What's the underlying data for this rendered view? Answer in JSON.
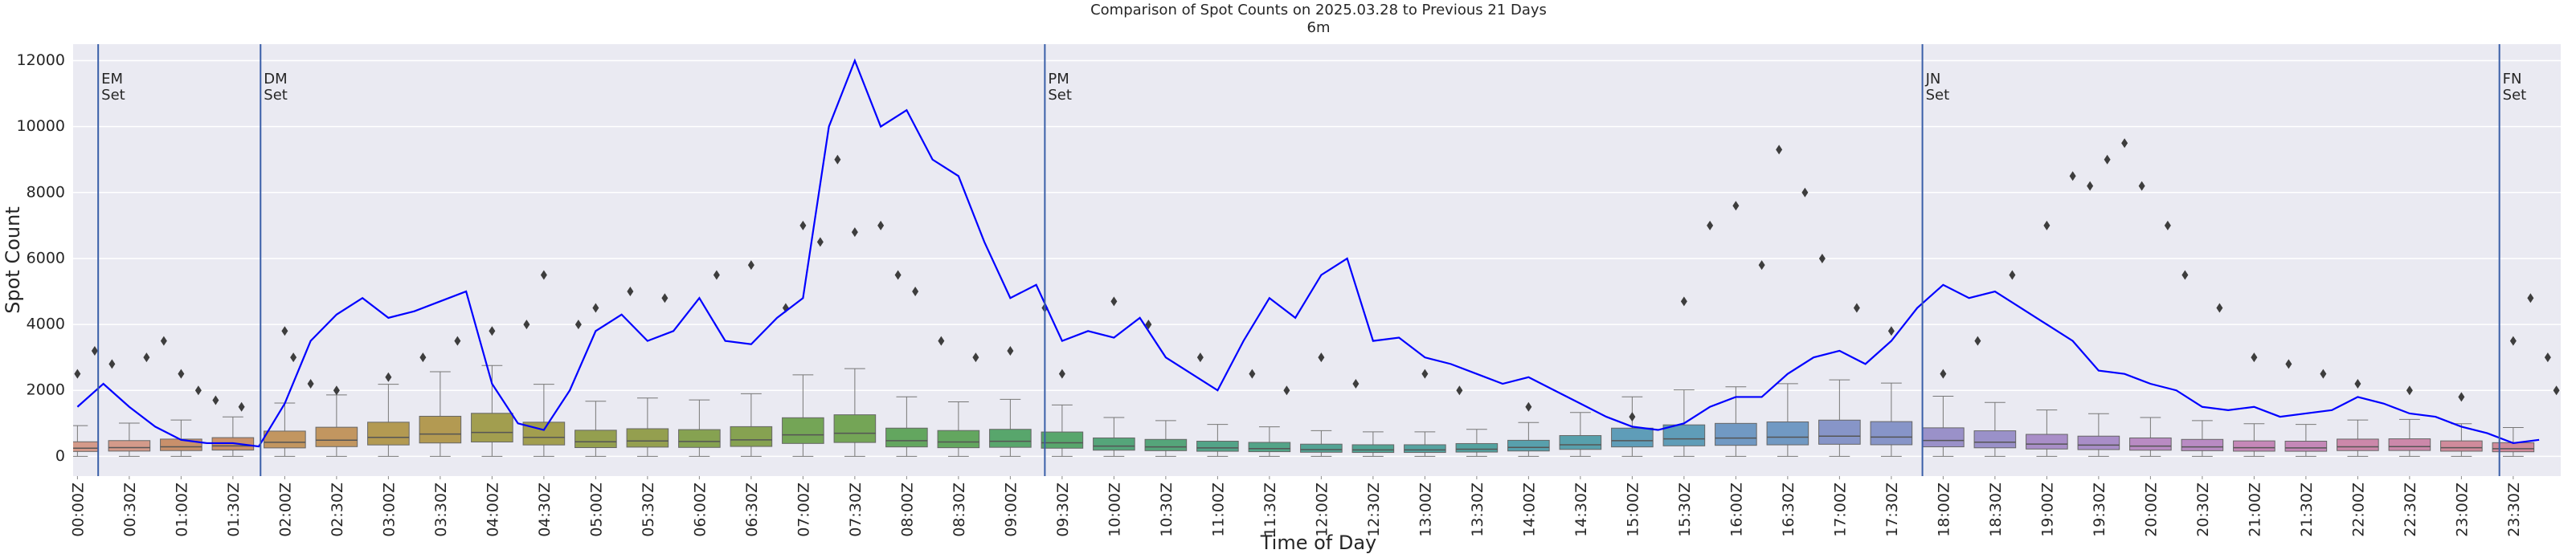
{
  "chart_data": {
    "type": "box",
    "title": "Comparison of Spot Counts on 2025.03.28 to Previous 21 Days",
    "subtitle": "6m",
    "xlabel": "Time of Day",
    "ylabel": "Spot Count",
    "grid": true,
    "background": "#eaeaf2",
    "xlim": [
      -2.5,
      1437.5
    ],
    "ylim": [
      -600,
      12500
    ],
    "yticks": [
      0,
      2000,
      4000,
      6000,
      8000,
      10000,
      12000
    ],
    "xticks": [
      {
        "value": 0,
        "label": "00:00Z"
      },
      {
        "value": 30,
        "label": "00:30Z"
      },
      {
        "value": 60,
        "label": "01:00Z"
      },
      {
        "value": 90,
        "label": "01:30Z"
      },
      {
        "value": 120,
        "label": "02:00Z"
      },
      {
        "value": 150,
        "label": "02:30Z"
      },
      {
        "value": 180,
        "label": "03:00Z"
      },
      {
        "value": 210,
        "label": "03:30Z"
      },
      {
        "value": 240,
        "label": "04:00Z"
      },
      {
        "value": 270,
        "label": "04:30Z"
      },
      {
        "value": 300,
        "label": "05:00Z"
      },
      {
        "value": 330,
        "label": "05:30Z"
      },
      {
        "value": 360,
        "label": "06:00Z"
      },
      {
        "value": 390,
        "label": "06:30Z"
      },
      {
        "value": 420,
        "label": "07:00Z"
      },
      {
        "value": 450,
        "label": "07:30Z"
      },
      {
        "value": 480,
        "label": "08:00Z"
      },
      {
        "value": 510,
        "label": "08:30Z"
      },
      {
        "value": 540,
        "label": "09:00Z"
      },
      {
        "value": 570,
        "label": "09:30Z"
      },
      {
        "value": 600,
        "label": "10:00Z"
      },
      {
        "value": 630,
        "label": "10:30Z"
      },
      {
        "value": 660,
        "label": "11:00Z"
      },
      {
        "value": 690,
        "label": "11:30Z"
      },
      {
        "value": 720,
        "label": "12:00Z"
      },
      {
        "value": 750,
        "label": "12:30Z"
      },
      {
        "value": 780,
        "label": "13:00Z"
      },
      {
        "value": 810,
        "label": "13:30Z"
      },
      {
        "value": 840,
        "label": "14:00Z"
      },
      {
        "value": 870,
        "label": "14:30Z"
      },
      {
        "value": 900,
        "label": "15:00Z"
      },
      {
        "value": 930,
        "label": "15:30Z"
      },
      {
        "value": 960,
        "label": "16:00Z"
      },
      {
        "value": 990,
        "label": "16:30Z"
      },
      {
        "value": 1020,
        "label": "17:00Z"
      },
      {
        "value": 1050,
        "label": "17:30Z"
      },
      {
        "value": 1080,
        "label": "18:00Z"
      },
      {
        "value": 1110,
        "label": "18:30Z"
      },
      {
        "value": 1140,
        "label": "19:00Z"
      },
      {
        "value": 1170,
        "label": "19:30Z"
      },
      {
        "value": 1200,
        "label": "20:00Z"
      },
      {
        "value": 1230,
        "label": "20:30Z"
      },
      {
        "value": 1260,
        "label": "21:00Z"
      },
      {
        "value": 1290,
        "label": "21:30Z"
      },
      {
        "value": 1320,
        "label": "22:00Z"
      },
      {
        "value": 1350,
        "label": "22:30Z"
      },
      {
        "value": 1380,
        "label": "23:00Z"
      },
      {
        "value": 1410,
        "label": "23:30Z"
      }
    ],
    "boxes": {
      "x": [
        0,
        30,
        60,
        90,
        120,
        150,
        180,
        210,
        240,
        270,
        300,
        330,
        360,
        390,
        420,
        450,
        480,
        510,
        540,
        570,
        600,
        630,
        660,
        690,
        720,
        750,
        780,
        810,
        840,
        870,
        900,
        930,
        960,
        990,
        1020,
        1050,
        1080,
        1110,
        1140,
        1170,
        1200,
        1230,
        1260,
        1290,
        1320,
        1350,
        1380,
        1410
      ],
      "whislo": [
        0,
        0,
        0,
        0,
        0,
        0,
        0,
        0,
        0,
        0,
        0,
        0,
        0,
        0,
        0,
        0,
        0,
        0,
        0,
        0,
        0,
        0,
        0,
        0,
        0,
        0,
        0,
        0,
        0,
        0,
        0,
        0,
        0,
        0,
        0,
        0,
        0,
        0,
        0,
        0,
        0,
        0,
        0,
        0,
        0,
        0,
        0,
        0
      ],
      "q1": [
        147,
        159,
        174,
        189,
        255,
        294,
        345,
        405,
        435,
        345,
        264,
        279,
        270,
        300,
        390,
        420,
        285,
        261,
        273,
        246,
        186,
        171,
        153,
        141,
        123,
        117,
        117,
        129,
        162,
        210,
        285,
        318,
        333,
        348,
        366,
        351,
        288,
        258,
        222,
        204,
        186,
        171,
        156,
        153,
        174,
        177,
        156,
        138
      ],
      "median": [
        245,
        265,
        290,
        315,
        425,
        490,
        575,
        675,
        725,
        575,
        440,
        465,
        450,
        500,
        650,
        700,
        475,
        435,
        455,
        410,
        310,
        285,
        255,
        235,
        205,
        195,
        195,
        215,
        270,
        350,
        475,
        530,
        555,
        580,
        610,
        585,
        480,
        430,
        370,
        340,
        310,
        285,
        260,
        255,
        290,
        295,
        260,
        230
      ],
      "q3": [
        441,
        477,
        522,
        567,
        765,
        882,
        1035,
        1215,
        1305,
        1035,
        792,
        837,
        810,
        900,
        1170,
        1260,
        855,
        783,
        819,
        738,
        558,
        513,
        459,
        423,
        369,
        351,
        351,
        387,
        486,
        630,
        855,
        954,
        999,
        1044,
        1098,
        1053,
        864,
        774,
        666,
        612,
        558,
        513,
        468,
        459,
        522,
        531,
        468,
        414
      ],
      "whishi": [
        931,
        1007,
        1102,
        1197,
        1615,
        1862,
        2185,
        2565,
        2755,
        2185,
        1672,
        1767,
        1710,
        1900,
        2470,
        2660,
        1805,
        1653,
        1729,
        1558,
        1178,
        1083,
        969,
        893,
        779,
        741,
        741,
        817,
        1026,
        1330,
        1805,
        2014,
        2109,
        2204,
        2318,
        2223,
        1824,
        1634,
        1406,
        1292,
        1178,
        1083,
        988,
        969,
        1102,
        1121,
        988,
        874
      ],
      "colors": [
        "#d49a8a",
        "#d49a8a",
        "#c9906b",
        "#c9906b",
        "#c29660",
        "#c29660",
        "#b39a52",
        "#b39a52",
        "#a29e4f",
        "#a29e4f",
        "#949f4f",
        "#949f4f",
        "#86a251",
        "#86a251",
        "#74a556",
        "#74a556",
        "#63a65f",
        "#63a65f",
        "#58a66c",
        "#58a66c",
        "#55a57a",
        "#55a57a",
        "#53a488",
        "#53a488",
        "#52a394",
        "#52a394",
        "#54a2a0",
        "#54a2a0",
        "#58a0ac",
        "#58a0ac",
        "#5f9db8",
        "#5f9db8",
        "#7199c3",
        "#7199c3",
        "#8795c8",
        "#8795c8",
        "#9a91c9",
        "#9a91c9",
        "#a98ec8",
        "#a98ec8",
        "#b98bc3",
        "#b98bc3",
        "#c588b8",
        "#c588b8",
        "#cc88aa",
        "#cc88aa",
        "#d08b9b",
        "#d08b9b"
      ]
    },
    "line": {
      "color": "#0000ff",
      "x": [
        0,
        15,
        30,
        45,
        60,
        75,
        90,
        105,
        120,
        135,
        150,
        165,
        180,
        195,
        210,
        225,
        240,
        255,
        270,
        285,
        300,
        315,
        330,
        345,
        360,
        375,
        390,
        405,
        420,
        435,
        450,
        465,
        480,
        495,
        510,
        525,
        540,
        555,
        570,
        585,
        600,
        615,
        630,
        645,
        660,
        675,
        690,
        705,
        720,
        735,
        750,
        765,
        780,
        795,
        810,
        825,
        840,
        855,
        870,
        885,
        900,
        915,
        930,
        945,
        960,
        975,
        990,
        1005,
        1020,
        1035,
        1050,
        1065,
        1080,
        1095,
        1110,
        1125,
        1140,
        1155,
        1170,
        1185,
        1200,
        1215,
        1230,
        1245,
        1260,
        1275,
        1290,
        1305,
        1320,
        1335,
        1350,
        1365,
        1380,
        1395,
        1410,
        1425
      ],
      "values": [
        1500,
        2200,
        1500,
        900,
        500,
        400,
        400,
        300,
        1600,
        3500,
        4300,
        4800,
        4200,
        4400,
        4700,
        5000,
        2200,
        1000,
        800,
        2000,
        3800,
        4300,
        3500,
        3800,
        4800,
        3500,
        3400,
        4200,
        4800,
        10000,
        12000,
        10000,
        10500,
        9000,
        8500,
        6500,
        4800,
        5200,
        3500,
        3800,
        3600,
        4200,
        3000,
        2500,
        2000,
        3500,
        4800,
        4200,
        5500,
        6000,
        3500,
        3600,
        3000,
        2800,
        2500,
        2200,
        2400,
        2000,
        1600,
        1200,
        900,
        800,
        1000,
        1500,
        1800,
        1800,
        2500,
        3000,
        3200,
        2800,
        3500,
        4500,
        5200,
        4800,
        5000,
        4500,
        4000,
        3500,
        2600,
        2500,
        2200,
        2000,
        1500,
        1400,
        1500,
        1200,
        1300,
        1400,
        1800,
        1600,
        1300,
        1200,
        900,
        700,
        400,
        500
      ]
    },
    "outliers": {
      "color": "#3d3d3d",
      "x": [
        0,
        10,
        20,
        40,
        50,
        60,
        70,
        80,
        95,
        120,
        125,
        135,
        150,
        180,
        200,
        220,
        240,
        260,
        270,
        290,
        300,
        320,
        340,
        370,
        390,
        410,
        420,
        430,
        440,
        450,
        465,
        475,
        485,
        500,
        520,
        540,
        560,
        570,
        600,
        620,
        650,
        680,
        700,
        720,
        740,
        780,
        800,
        840,
        900,
        930,
        945,
        960,
        975,
        985,
        1000,
        1010,
        1030,
        1050,
        1080,
        1100,
        1120,
        1140,
        1155,
        1165,
        1175,
        1185,
        1195,
        1210,
        1220,
        1240,
        1260,
        1280,
        1300,
        1320,
        1350,
        1380,
        1410,
        1420,
        1430,
        1435
      ],
      "y": [
        2500,
        3200,
        2800,
        3000,
        3500,
        2500,
        2000,
        1700,
        1500,
        3800,
        3000,
        2200,
        2000,
        2400,
        3000,
        3500,
        3800,
        4000,
        5500,
        4000,
        4500,
        5000,
        4800,
        5500,
        5800,
        4500,
        7000,
        6500,
        9000,
        6800,
        7000,
        5500,
        5000,
        3500,
        3000,
        3200,
        4500,
        2500,
        4700,
        4000,
        3000,
        2500,
        2000,
        3000,
        2200,
        2500,
        2000,
        1500,
        1200,
        4700,
        7000,
        7600,
        5800,
        9300,
        8000,
        6000,
        4500,
        3800,
        2500,
        3500,
        5500,
        7000,
        8500,
        8200,
        9000,
        9500,
        8200,
        7000,
        5500,
        4500,
        3000,
        2800,
        2500,
        2200,
        2000,
        1800,
        3500,
        4800,
        3000,
        2000
      ]
    },
    "vlines": {
      "color": "#3a5fa8",
      "x": [
        12,
        106,
        560,
        1068,
        1402
      ],
      "labels": [
        [
          "EM",
          "Set"
        ],
        [
          "DM",
          "Set"
        ],
        [
          "PM",
          "Set"
        ],
        [
          "JN",
          "Set"
        ],
        [
          "FN",
          "Set"
        ]
      ]
    }
  }
}
